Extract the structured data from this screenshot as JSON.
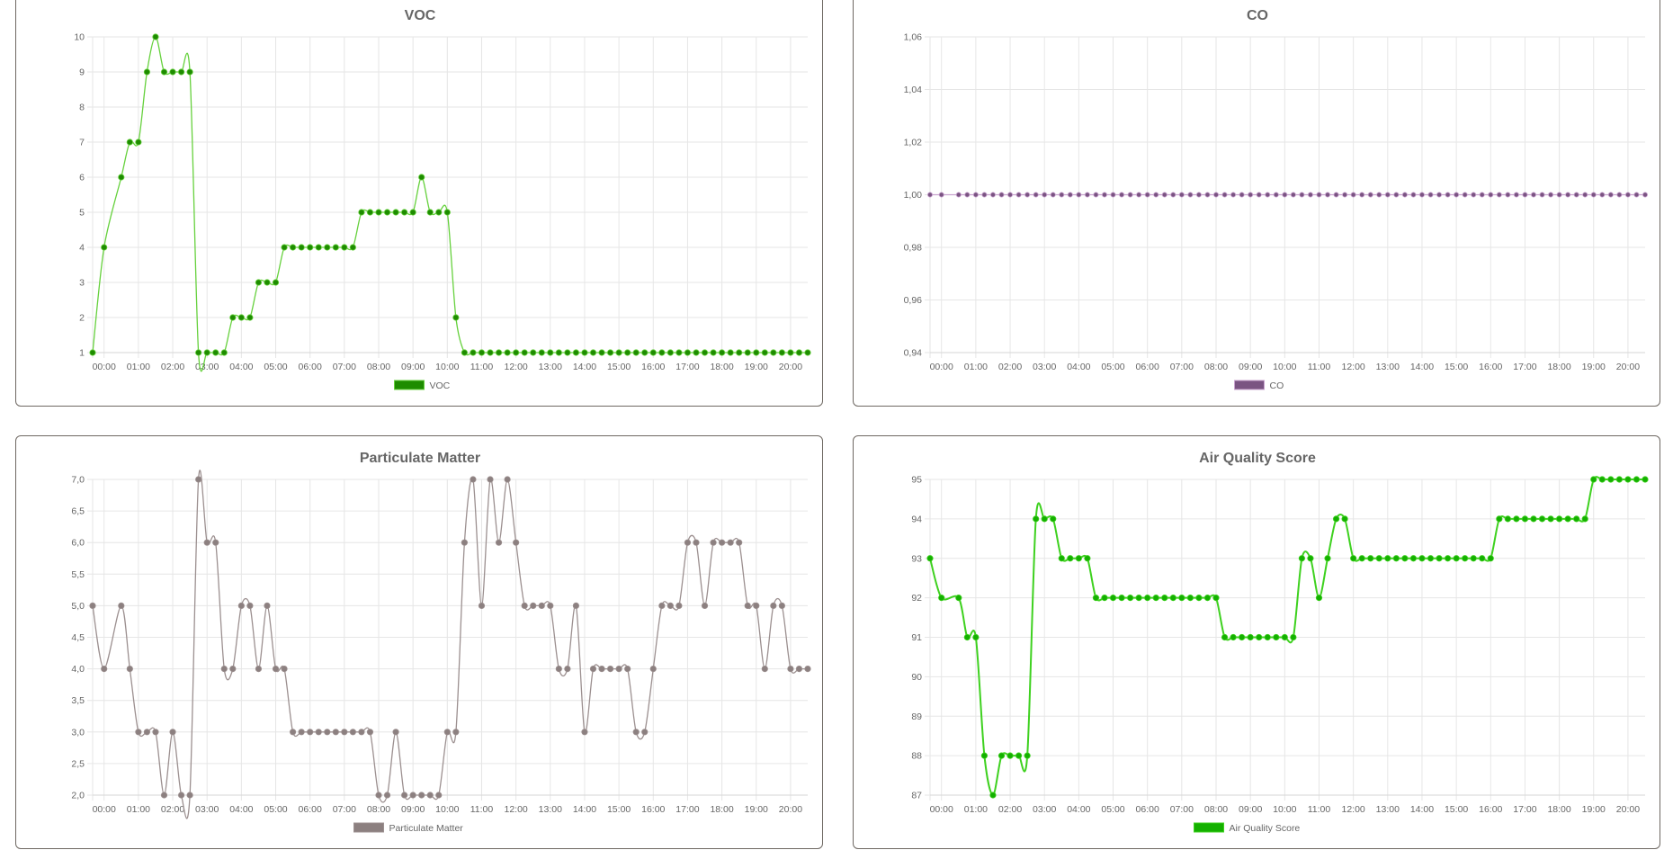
{
  "panels": [
    {
      "id": "voc",
      "title": "VOC",
      "legend": "VOC"
    },
    {
      "id": "co",
      "title": "CO",
      "legend": "CO"
    },
    {
      "id": "pm",
      "title": "Particulate Matter",
      "legend": "Particulate Matter"
    },
    {
      "id": "aqs",
      "title": "Air Quality Score",
      "legend": "Air Quality Score"
    }
  ],
  "chart_data": [
    {
      "type": "line",
      "title": "VOC",
      "legend": [
        "VOC"
      ],
      "legend_position": "bottom",
      "grid": true,
      "color": "#1e8c00",
      "line_color": "#66d13d",
      "x_ticks": [
        "00:00",
        "01:00",
        "02:00",
        "03:00",
        "04:00",
        "05:00",
        "06:00",
        "07:00",
        "08:00",
        "09:00",
        "10:00",
        "11:00",
        "12:00",
        "13:00",
        "14:00",
        "15:00",
        "16:00",
        "17:00",
        "18:00",
        "19:00",
        "20:00"
      ],
      "y_ticks": [
        "1",
        "2",
        "3",
        "4",
        "5",
        "6",
        "7",
        "8",
        "9",
        "10"
      ],
      "ylim": [
        1,
        10
      ],
      "x": [
        "23:40",
        "00:00",
        "00:30",
        "00:45",
        "01:00",
        "01:15",
        "01:30",
        "01:45",
        "02:00",
        "02:15",
        "02:30",
        "02:45",
        "03:00",
        "03:15",
        "03:30",
        "03:45",
        "04:00",
        "04:15",
        "04:30",
        "04:45",
        "05:00",
        "05:15",
        "05:30",
        "05:45",
        "06:00",
        "06:15",
        "06:30",
        "06:45",
        "07:00",
        "07:15",
        "07:30",
        "07:45",
        "08:00",
        "08:15",
        "08:30",
        "08:45",
        "09:00",
        "09:15",
        "09:30",
        "09:45",
        "10:00",
        "10:15",
        "10:30",
        "10:45",
        "11:00",
        "11:15",
        "11:30",
        "11:45",
        "12:00",
        "12:15",
        "12:30",
        "12:45",
        "13:00",
        "13:15",
        "13:30",
        "13:45",
        "14:00",
        "14:15",
        "14:30",
        "14:45",
        "15:00",
        "15:15",
        "15:30",
        "15:45",
        "16:00",
        "16:15",
        "16:30",
        "16:45",
        "17:00",
        "17:15",
        "17:30",
        "17:45",
        "18:00",
        "18:15",
        "18:30",
        "18:45",
        "19:00",
        "19:15",
        "19:30",
        "19:45",
        "20:00",
        "20:15",
        "20:30"
      ],
      "series": [
        {
          "name": "VOC",
          "values": [
            1,
            4,
            6,
            7,
            7,
            9,
            10,
            9,
            9,
            9,
            9,
            1,
            1,
            1,
            1,
            2,
            2,
            2,
            3,
            3,
            3,
            4,
            4,
            4,
            4,
            4,
            4,
            4,
            4,
            4,
            5,
            5,
            5,
            5,
            5,
            5,
            5,
            6,
            5,
            5,
            5,
            2,
            1,
            1,
            1,
            1,
            1,
            1,
            1,
            1,
            1,
            1,
            1,
            1,
            1,
            1,
            1,
            1,
            1,
            1,
            1,
            1,
            1,
            1,
            1,
            1,
            1,
            1,
            1,
            1,
            1,
            1,
            1,
            1,
            1,
            1,
            1,
            1,
            1,
            1,
            1,
            1,
            1
          ]
        }
      ]
    },
    {
      "type": "line",
      "title": "CO",
      "legend": [
        "CO"
      ],
      "legend_position": "bottom",
      "grid": true,
      "color": "#7a5482",
      "line_color": "#c9a3cf",
      "x_ticks": [
        "00:00",
        "01:00",
        "02:00",
        "03:00",
        "04:00",
        "05:00",
        "06:00",
        "07:00",
        "08:00",
        "09:00",
        "10:00",
        "11:00",
        "12:00",
        "13:00",
        "14:00",
        "15:00",
        "16:00",
        "17:00",
        "18:00",
        "19:00",
        "20:00"
      ],
      "y_ticks": [
        "0,94",
        "0,96",
        "0,98",
        "1,00",
        "1,02",
        "1,04",
        "1,06"
      ],
      "ylim": [
        0.94,
        1.06
      ],
      "x": "same as VOC (23:40, 00:00, then every 15 min 00:30–20:30)",
      "series": [
        {
          "name": "CO",
          "values": [
            1,
            1,
            1,
            1,
            1,
            1,
            1,
            1,
            1,
            1,
            1,
            1,
            1,
            1,
            1,
            1,
            1,
            1,
            1,
            1,
            1,
            1,
            1,
            1,
            1,
            1,
            1,
            1,
            1,
            1,
            1,
            1,
            1,
            1,
            1,
            1,
            1,
            1,
            1,
            1,
            1,
            1,
            1,
            1,
            1,
            1,
            1,
            1,
            1,
            1,
            1,
            1,
            1,
            1,
            1,
            1,
            1,
            1,
            1,
            1,
            1,
            1,
            1,
            1,
            1,
            1,
            1,
            1,
            1,
            1,
            1,
            1,
            1,
            1,
            1,
            1,
            1,
            1,
            1,
            1,
            1,
            1,
            1
          ]
        }
      ]
    },
    {
      "type": "line",
      "title": "Particulate Matter",
      "legend": [
        "Particulate Matter"
      ],
      "legend_position": "bottom",
      "grid": true,
      "color": "#8c8080",
      "line_color": "#9c9090",
      "x_ticks": [
        "00:00",
        "01:00",
        "02:00",
        "03:00",
        "04:00",
        "05:00",
        "06:00",
        "07:00",
        "08:00",
        "09:00",
        "10:00",
        "11:00",
        "12:00",
        "13:00",
        "14:00",
        "15:00",
        "16:00",
        "17:00",
        "18:00",
        "19:00",
        "20:00"
      ],
      "y_ticks": [
        "2,0",
        "2,5",
        "3,0",
        "3,5",
        "4,0",
        "4,5",
        "5,0",
        "5,5",
        "6,0",
        "6,5",
        "7,0"
      ],
      "ylim": [
        2,
        7
      ],
      "x": "same as VOC (23:40, 00:00, then every 15 min 00:30–20:30)",
      "series": [
        {
          "name": "Particulate Matter",
          "values": [
            5,
            4,
            5,
            4,
            3,
            3,
            3,
            2,
            3,
            2,
            2,
            7,
            6,
            6,
            4,
            4,
            5,
            5,
            4,
            5,
            4,
            4,
            3,
            3,
            3,
            3,
            3,
            3,
            3,
            3,
            3,
            3,
            2,
            2,
            3,
            2,
            2,
            2,
            2,
            2,
            3,
            3,
            6,
            7,
            5,
            7,
            6,
            7,
            6,
            5,
            5,
            5,
            5,
            4,
            4,
            5,
            3,
            4,
            4,
            4,
            4,
            4,
            3,
            3,
            4,
            5,
            5,
            5,
            6,
            6,
            5,
            6,
            6,
            6,
            6,
            5,
            5,
            4,
            5,
            5,
            4,
            4,
            4
          ]
        }
      ]
    },
    {
      "type": "line",
      "title": "Air Quality Score",
      "legend": [
        "Air Quality Score"
      ],
      "legend_position": "bottom",
      "grid": true,
      "color": "#14b000",
      "line_color": "#3ed11f",
      "x_ticks": [
        "00:00",
        "01:00",
        "02:00",
        "03:00",
        "04:00",
        "05:00",
        "06:00",
        "07:00",
        "08:00",
        "09:00",
        "10:00",
        "11:00",
        "12:00",
        "13:00",
        "14:00",
        "15:00",
        "16:00",
        "17:00",
        "18:00",
        "19:00",
        "20:00"
      ],
      "y_ticks": [
        "87",
        "88",
        "89",
        "90",
        "91",
        "92",
        "93",
        "94",
        "95"
      ],
      "ylim": [
        87,
        95
      ],
      "x": "same as VOC (23:40, 00:00, then every 15 min 00:30–20:30)",
      "series": [
        {
          "name": "Air Quality Score",
          "values": [
            93,
            92,
            92,
            91,
            91,
            88,
            87,
            88,
            88,
            88,
            88,
            94,
            94,
            94,
            93,
            93,
            93,
            93,
            92,
            92,
            92,
            92,
            92,
            92,
            92,
            92,
            92,
            92,
            92,
            92,
            92,
            92,
            92,
            91,
            91,
            91,
            91,
            91,
            91,
            91,
            91,
            91,
            93,
            93,
            92,
            93,
            94,
            94,
            93,
            93,
            93,
            93,
            93,
            93,
            93,
            93,
            93,
            93,
            93,
            93,
            93,
            93,
            93,
            93,
            93,
            94,
            94,
            94,
            94,
            94,
            94,
            94,
            94,
            94,
            94,
            94,
            95,
            95,
            95,
            95,
            95,
            95,
            95
          ]
        }
      ]
    }
  ]
}
